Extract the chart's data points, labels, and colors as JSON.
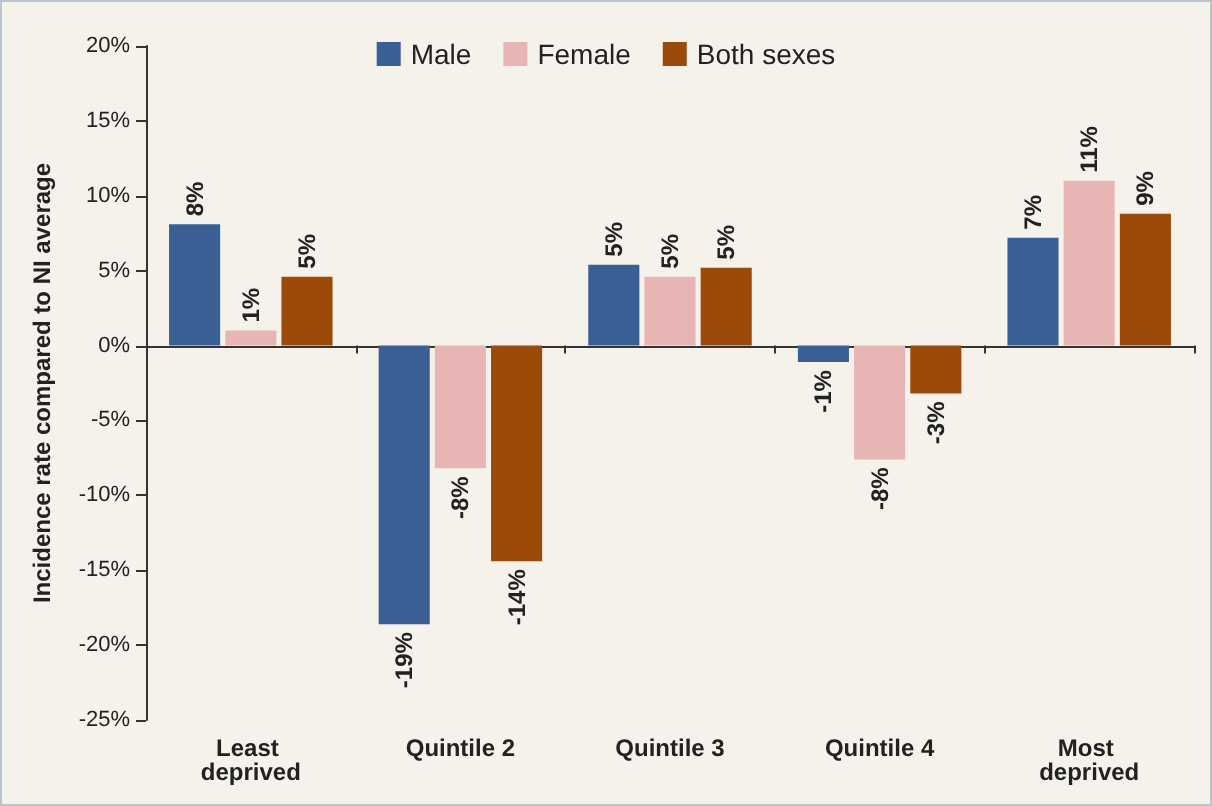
{
  "chart_data": {
    "type": "bar",
    "ylabel": "Incidence rate compared to NI average",
    "categories": [
      "Least deprived",
      "Quintile 2",
      "Quintile 3",
      "Quintile 4",
      "Most deprived"
    ],
    "series": [
      {
        "name": "Male",
        "color": "#3a5f94",
        "values": [
          8.1,
          -18.6,
          5.4,
          -1.1,
          7.2
        ],
        "value_labels": [
          "8%",
          "-19%",
          "5%",
          "-1%",
          "7%"
        ]
      },
      {
        "name": "Female",
        "color": "#e8b5b5",
        "values": [
          1.0,
          -8.2,
          4.6,
          -7.6,
          11.0
        ],
        "value_labels": [
          "1%",
          "-8%",
          "5%",
          "-8%",
          "11%"
        ]
      },
      {
        "name": "Both sexes",
        "color": "#9c4a0a",
        "values": [
          4.6,
          -14.4,
          5.2,
          -3.2,
          8.8
        ],
        "value_labels": [
          "5%",
          "-14%",
          "5%",
          "-3%",
          "9%"
        ]
      }
    ],
    "ylim": [
      -25,
      20
    ],
    "yticks": [
      {
        "value": -25,
        "label": "-25%"
      },
      {
        "value": -20,
        "label": "-20%"
      },
      {
        "value": -15,
        "label": "-15%"
      },
      {
        "value": -10,
        "label": "-10%"
      },
      {
        "value": -5,
        "label": "-5%"
      },
      {
        "value": 0,
        "label": "0%"
      },
      {
        "value": 5,
        "label": "5%"
      },
      {
        "value": 10,
        "label": "10%"
      },
      {
        "value": 15,
        "label": "15%"
      },
      {
        "value": 20,
        "label": "20%"
      }
    ],
    "legend": "top"
  }
}
